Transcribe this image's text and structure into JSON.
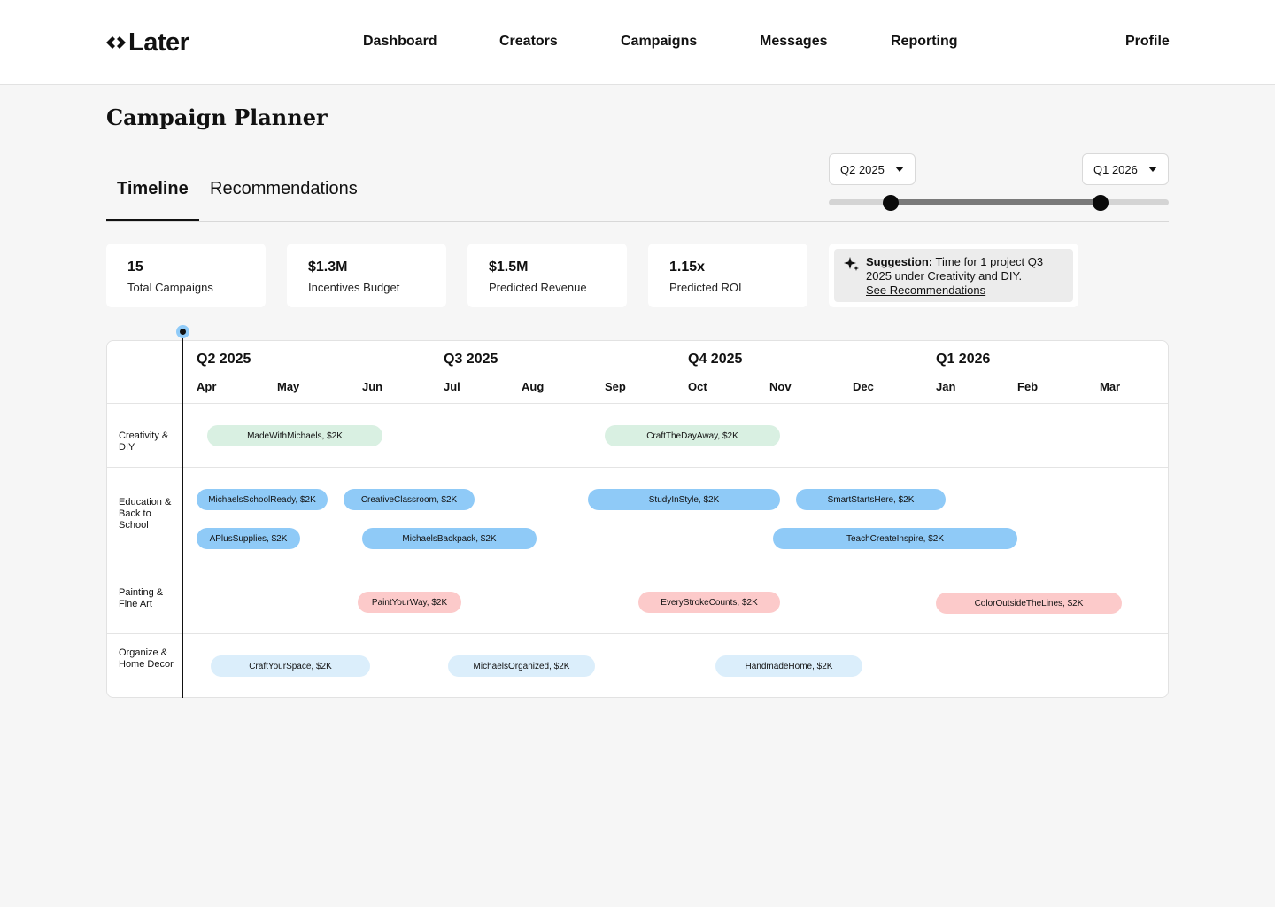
{
  "header": {
    "logo_text": "Later",
    "nav": [
      "Dashboard",
      "Creators",
      "Campaigns",
      "Messages",
      "Reporting"
    ],
    "profile_label": "Profile"
  },
  "page": {
    "title": "Campaign Planner"
  },
  "tabs": [
    {
      "label": "Timeline",
      "active": true
    },
    {
      "label": "Recommendations",
      "active": false
    }
  ],
  "range": {
    "start": "Q2 2025",
    "end": "Q1 2026"
  },
  "stats": [
    {
      "value": "15",
      "label": "Total Campaigns"
    },
    {
      "value": "$1.3M",
      "label": "Incentives Budget"
    },
    {
      "value": "$1.5M",
      "label": "Predicted Revenue"
    },
    {
      "value": "1.15x",
      "label": "Predicted ROI"
    }
  ],
  "suggestion": {
    "icon": "sparkle-icon",
    "title": "Suggestion:",
    "text": "Time for 1 project Q3 2025 under Creativity and DIY.",
    "link": "See Recommendations"
  },
  "timeline": {
    "quarters": [
      "Q2 2025",
      "Q3 2025",
      "Q4 2025",
      "Q1 2026"
    ],
    "months": [
      "Apr",
      "May",
      "Jun",
      "Jul",
      "Aug",
      "Sep",
      "Oct",
      "Nov",
      "Dec",
      "Jan",
      "Feb",
      "Mar"
    ],
    "rows": [
      {
        "label": "Creativity & DIY"
      },
      {
        "label": "Education & Back to School"
      },
      {
        "label": "Painting & Fine Art"
      },
      {
        "label": "Organize & Home Decor"
      }
    ],
    "campaigns": [
      "MadeWithMichaels, $2K",
      "CraftTheDayAway, $2K",
      "MichaelsSchoolReady, $2K",
      "CreativeClassroom, $2K",
      "StudyInStyle, $2K",
      "SmartStartsHere, $2K",
      "APlusSupplies, $2K",
      "MichaelsBackpack, $2K",
      "TeachCreateInspire, $2K",
      "PaintYourWay, $2K",
      "EveryStrokeCounts, $2K",
      "ColorOutsideTheLines, $2K",
      "CraftYourSpace, $2K",
      "MichaelsOrganized, $2K",
      "HandmadeHome, $2K"
    ]
  },
  "colors": {
    "creativity": "#d9f0e2",
    "education": "#8fcaf7",
    "painting": "#fccaca",
    "organize": "#dbeefb",
    "today_marker": "#90cbf8"
  }
}
